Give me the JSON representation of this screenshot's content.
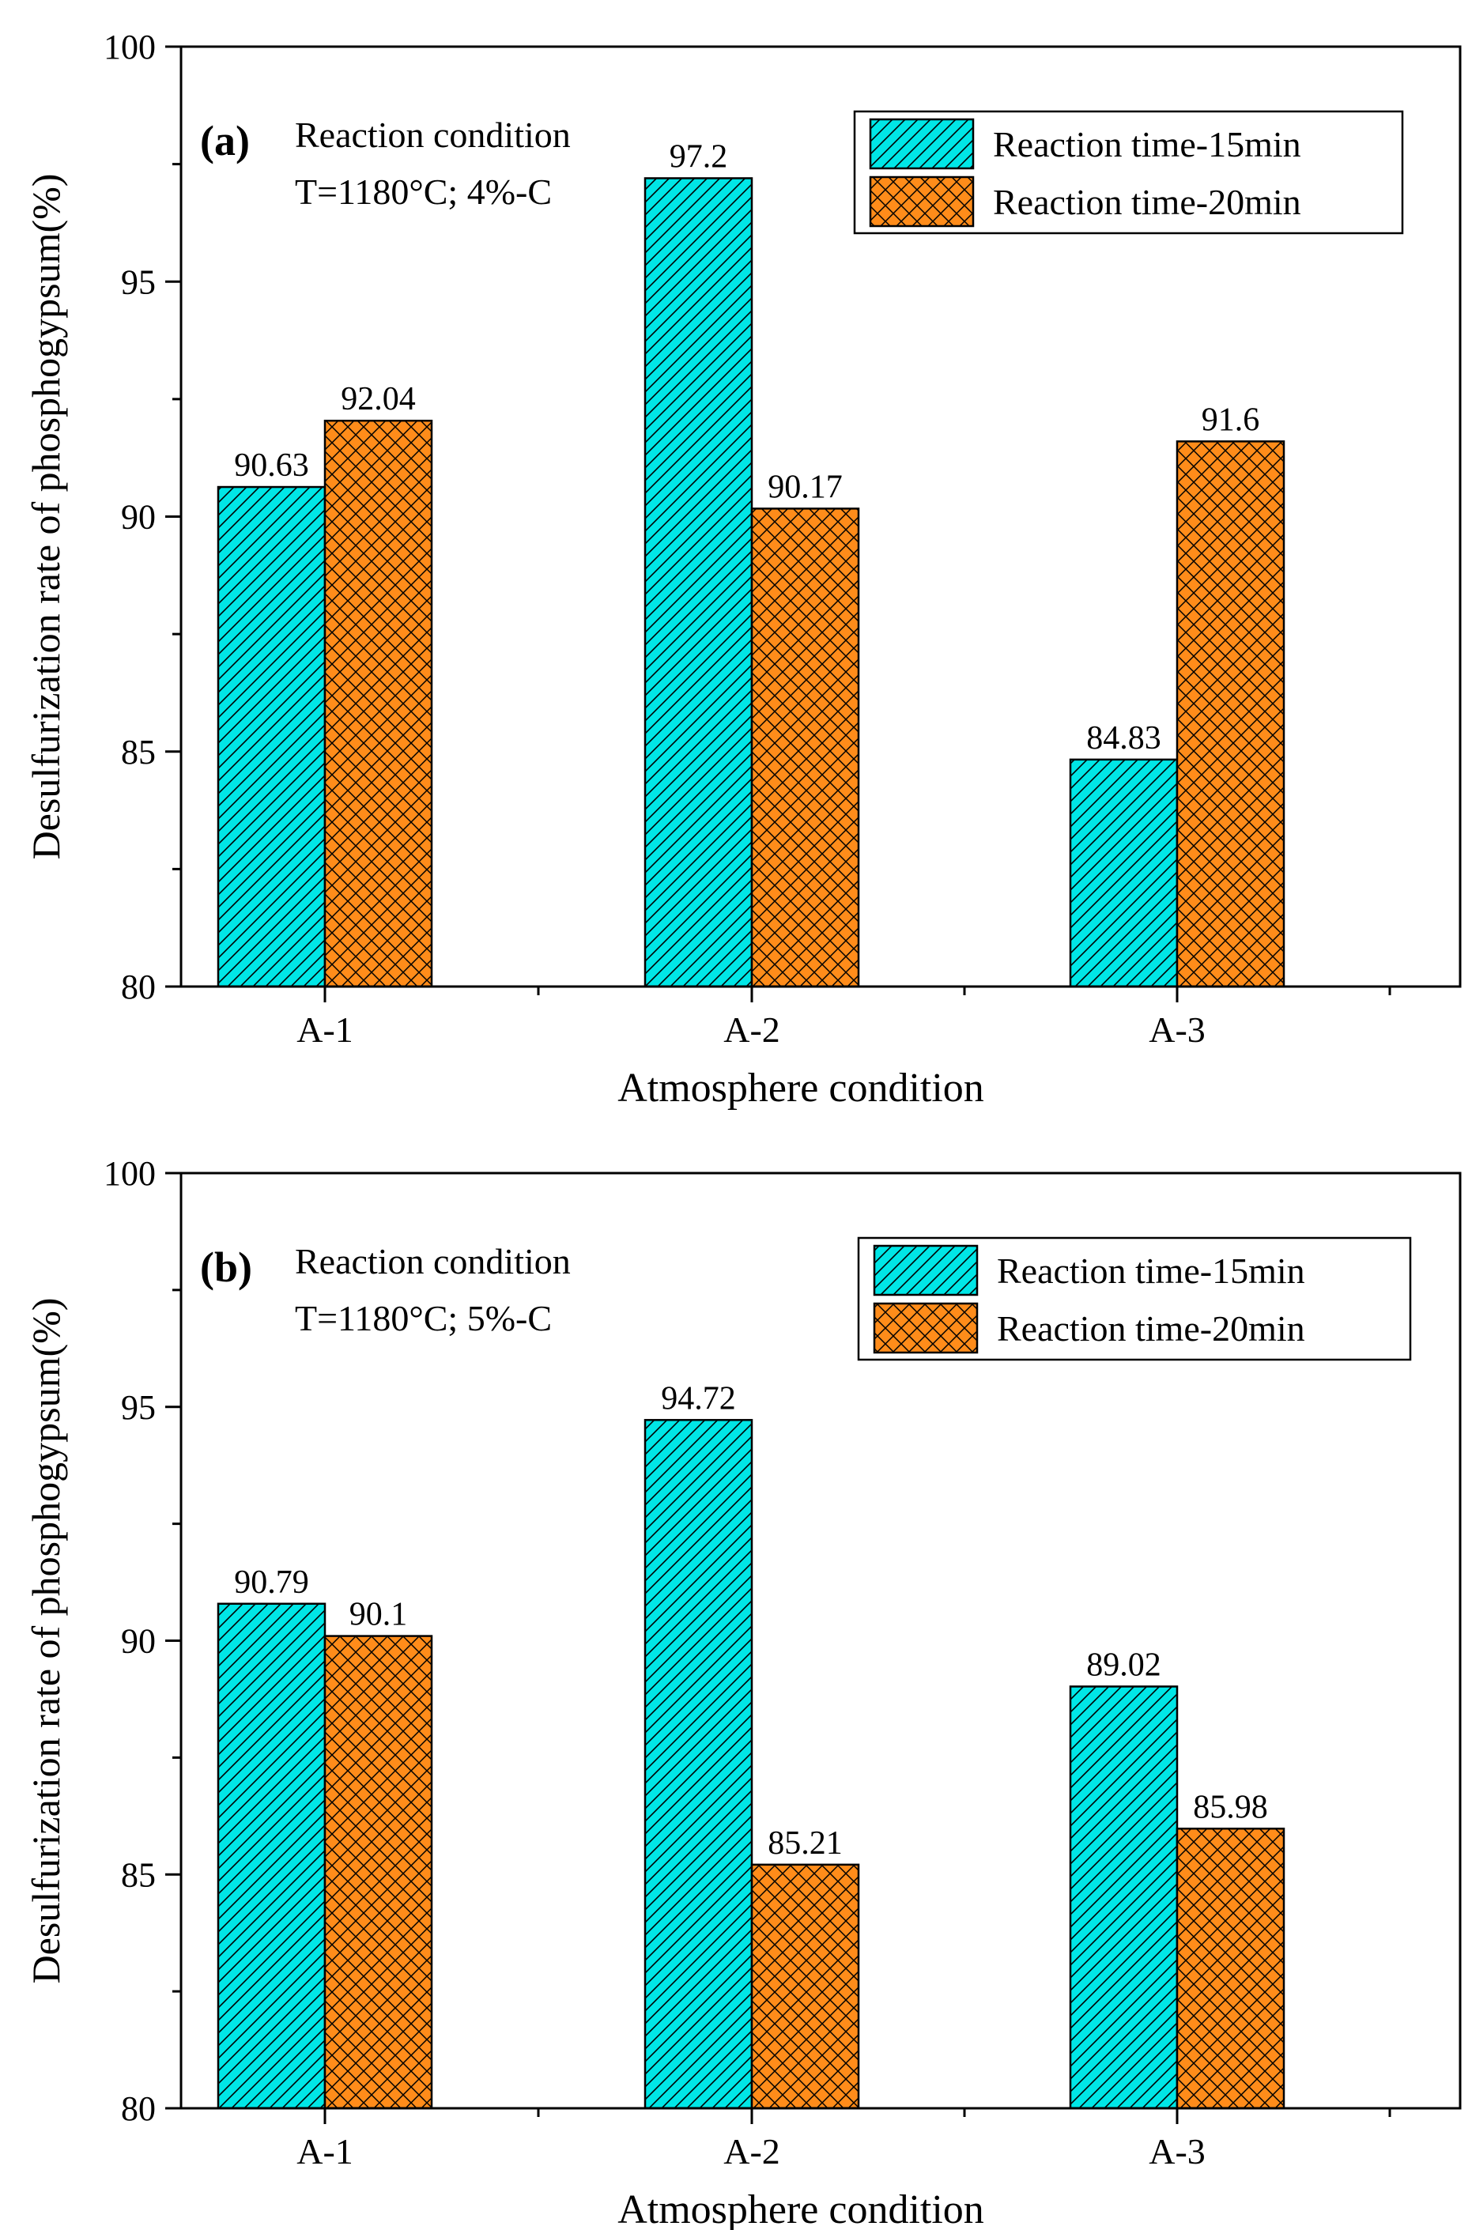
{
  "colors": {
    "series_15": "#00E6E6",
    "series_20": "#FF8C1A",
    "axis": "#000000"
  },
  "chart_data": [
    {
      "type": "bar",
      "panel_label": "(a)",
      "annotation_lines": [
        "Reaction condition",
        "T=1180°C; 4%-C"
      ],
      "xlabel": "Atmosphere condition",
      "ylabel": "Desulfurization rate of phosphogypsum(%)",
      "categories": [
        "A-1",
        "A-2",
        "A-3"
      ],
      "ylim": [
        80,
        100
      ],
      "yticks": [
        80,
        85,
        90,
        95,
        100
      ],
      "legend_position": "top-right",
      "grid": false,
      "series": [
        {
          "name": "Reaction time-15min",
          "values": [
            90.63,
            97.2,
            84.83
          ],
          "labels": [
            "90.63",
            "97.2",
            "84.83"
          ],
          "pattern": "diagonal-hatch"
        },
        {
          "name": "Reaction time-20min",
          "values": [
            92.04,
            90.17,
            91.6
          ],
          "labels": [
            "92.04",
            "90.17",
            "91.6"
          ],
          "pattern": "cross-hatch"
        }
      ]
    },
    {
      "type": "bar",
      "panel_label": "(b)",
      "annotation_lines": [
        "Reaction condition",
        "T=1180°C; 5%-C"
      ],
      "xlabel": "Atmosphere condition",
      "ylabel": "Desulfurization rate of phosphogypsum(%)",
      "categories": [
        "A-1",
        "A-2",
        "A-3"
      ],
      "ylim": [
        80,
        100
      ],
      "yticks": [
        80,
        85,
        90,
        95,
        100
      ],
      "legend_position": "top-right",
      "grid": false,
      "series": [
        {
          "name": "Reaction time-15min",
          "values": [
            90.79,
            94.72,
            89.02
          ],
          "labels": [
            "90.79",
            "94.72",
            "89.02"
          ],
          "pattern": "diagonal-hatch"
        },
        {
          "name": "Reaction time-20min",
          "values": [
            90.1,
            85.21,
            85.98
          ],
          "labels": [
            "90.1",
            "85.21",
            "85.98"
          ],
          "pattern": "cross-hatch"
        }
      ]
    }
  ]
}
